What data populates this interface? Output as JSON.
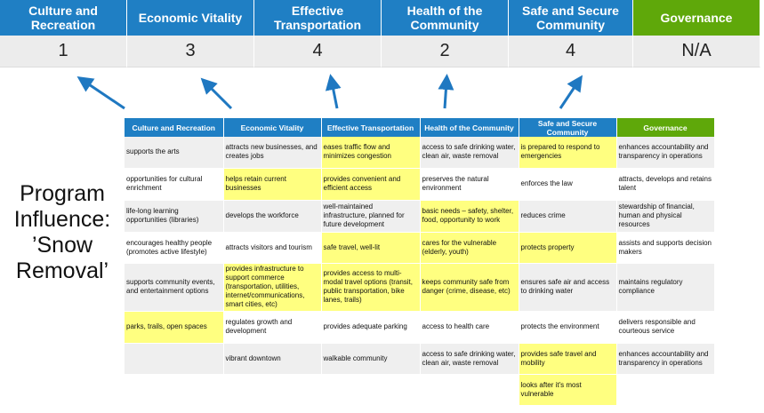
{
  "categories": [
    "Culture and Recreation",
    "Economic Vitality",
    "Effective Transportation",
    "Health of the Community",
    "Safe and Secure Community",
    "Governance"
  ],
  "scores": [
    "1",
    "3",
    "4",
    "2",
    "4",
    "N/A"
  ],
  "side_label": "Program Influence: ’Snow Removal’",
  "colors": {
    "header_blue": "#1f7fc4",
    "governance_green": "#5fa80a",
    "highlight_yellow": "#ffff80",
    "arrow_blue": "#1f78c1"
  },
  "table": {
    "headers": [
      "Culture and Recreation",
      "Economic Vitality",
      "Effective Transportation",
      "Health of the Community",
      "Safe and Secure Community",
      "Governance"
    ],
    "rows": [
      {
        "cells": [
          "supports the arts",
          "attracts new businesses, and creates jobs",
          "eases traffic flow and minimizes congestion",
          "access to safe drinking water, clean air, waste removal",
          "is prepared to respond to emergencies",
          "enhances accountability and transparency in operations"
        ],
        "highlighted": [
          2,
          4
        ]
      },
      {
        "cells": [
          "opportunities for cultural enrichment",
          "helps retain current businesses",
          "provides convenient and efficient access",
          "preserves the natural environment",
          "enforces the law",
          "attracts, develops and retains talent"
        ],
        "highlighted": [
          1,
          2
        ]
      },
      {
        "cells": [
          "life-long learning opportunities (libraries)",
          "develops the workforce",
          "well-maintained infrastructure, planned for future development",
          "basic needs – safety, shelter, food, opportunity to work",
          "reduces crime",
          "stewardship of financial, human and physical resources"
        ],
        "highlighted": [
          3
        ]
      },
      {
        "cells": [
          "encourages healthy people (promotes active lifestyle)",
          "attracts visitors and tourism",
          "safe travel, well-lit",
          "cares for the vulnerable (elderly, youth)",
          "protects property",
          "assists and supports decision makers"
        ],
        "highlighted": [
          2,
          3,
          4
        ]
      },
      {
        "cells": [
          "supports community events, and entertainment options",
          "provides infrastructure to support commerce (transportation, utilities, internet/communications, smart cities, etc)",
          "provides access to multi-modal travel options (transit, public transportation, bike lanes, trails)",
          "keeps community safe from danger (crime, disease, etc)",
          "ensures safe air and access to drinking water",
          "maintains regulatory compliance"
        ],
        "highlighted": [
          1,
          2,
          3
        ]
      },
      {
        "cells": [
          "parks, trails, open spaces",
          "regulates growth and development",
          "provides adequate parking",
          "access to health care",
          "protects the environment",
          "delivers responsible and courteous service"
        ],
        "highlighted": [
          0
        ]
      },
      {
        "cells": [
          "",
          "vibrant downtown",
          "walkable community",
          "access to safe drinking water, clean air, waste removal",
          "provides safe travel and mobility",
          "enhances accountability and transparency in operations"
        ],
        "highlighted": [
          4
        ]
      },
      {
        "cells": [
          "",
          "",
          "",
          "",
          "looks after it's most vulnerable",
          ""
        ],
        "highlighted": [
          4
        ]
      }
    ]
  }
}
